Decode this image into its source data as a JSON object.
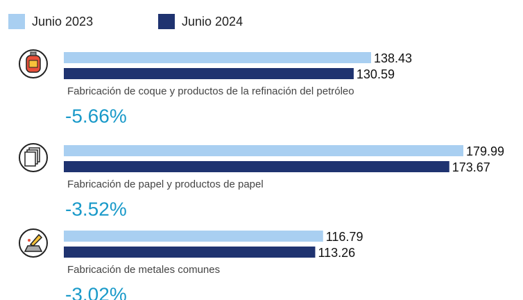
{
  "chart_data": {
    "type": "bar",
    "orientation": "horizontal",
    "categories": [
      "Fabricación de coque y productos de la refinación del petróleo",
      "Fabricación de papel y productos de papel",
      "Fabricación de metales comunes"
    ],
    "series": [
      {
        "name": "Junio 2023",
        "color": "#a9cff1",
        "values": [
          138.43,
          179.99,
          116.79
        ]
      },
      {
        "name": "Junio 2024",
        "color": "#1f3370",
        "values": [
          130.59,
          173.67,
          113.26
        ]
      }
    ],
    "annotations": [
      "-5.66%",
      "-3.52%",
      "-3.02%"
    ]
  }
}
